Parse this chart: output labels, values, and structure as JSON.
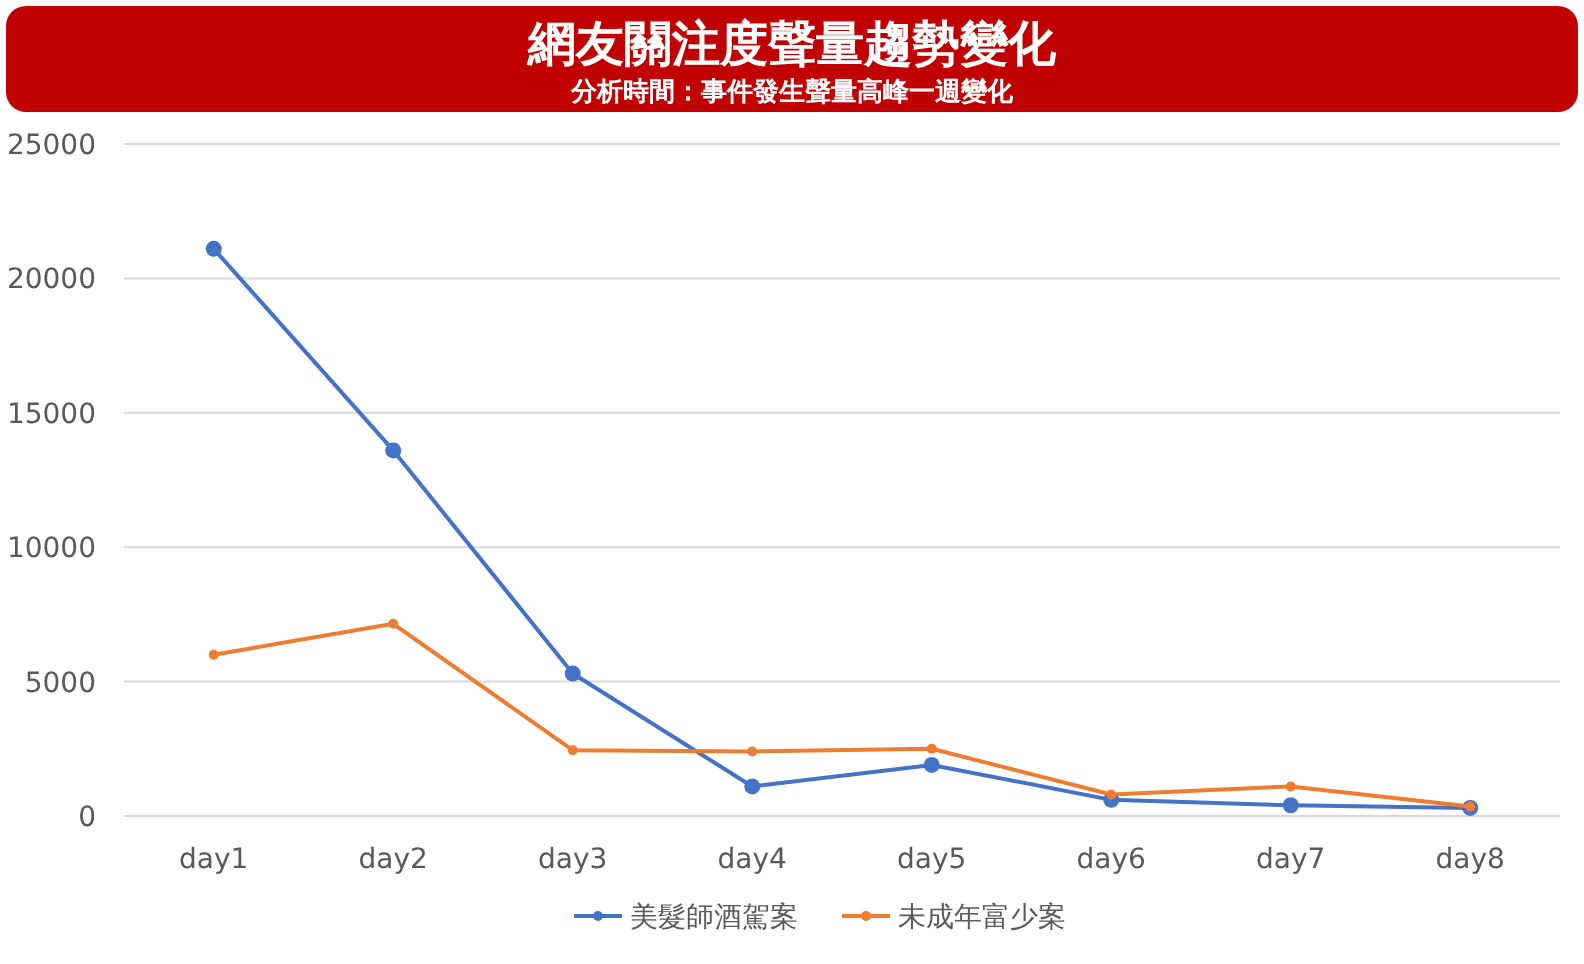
{
  "chart_data": {
    "type": "line",
    "title": "網友關注度聲量趨勢變化",
    "subtitle": "分析時間：事件發生聲量高峰一週變化",
    "categories": [
      "day1",
      "day2",
      "day3",
      "day4",
      "day5",
      "day6",
      "day7",
      "day8"
    ],
    "series": [
      {
        "name": "美髮師酒駕案",
        "color": "#4472c4",
        "values": [
          21100,
          13600,
          5300,
          1100,
          1900,
          600,
          400,
          300
        ]
      },
      {
        "name": "未成年富少案",
        "color": "#ed7d31",
        "values": [
          6000,
          7150,
          2450,
          2400,
          2500,
          800,
          1100,
          350
        ]
      }
    ],
    "ylim": [
      0,
      25000
    ],
    "yticks": [
      0,
      5000,
      10000,
      15000,
      20000,
      25000
    ],
    "grid": "y",
    "legend": "bottom",
    "marker": "circle",
    "line_style": "solid"
  }
}
